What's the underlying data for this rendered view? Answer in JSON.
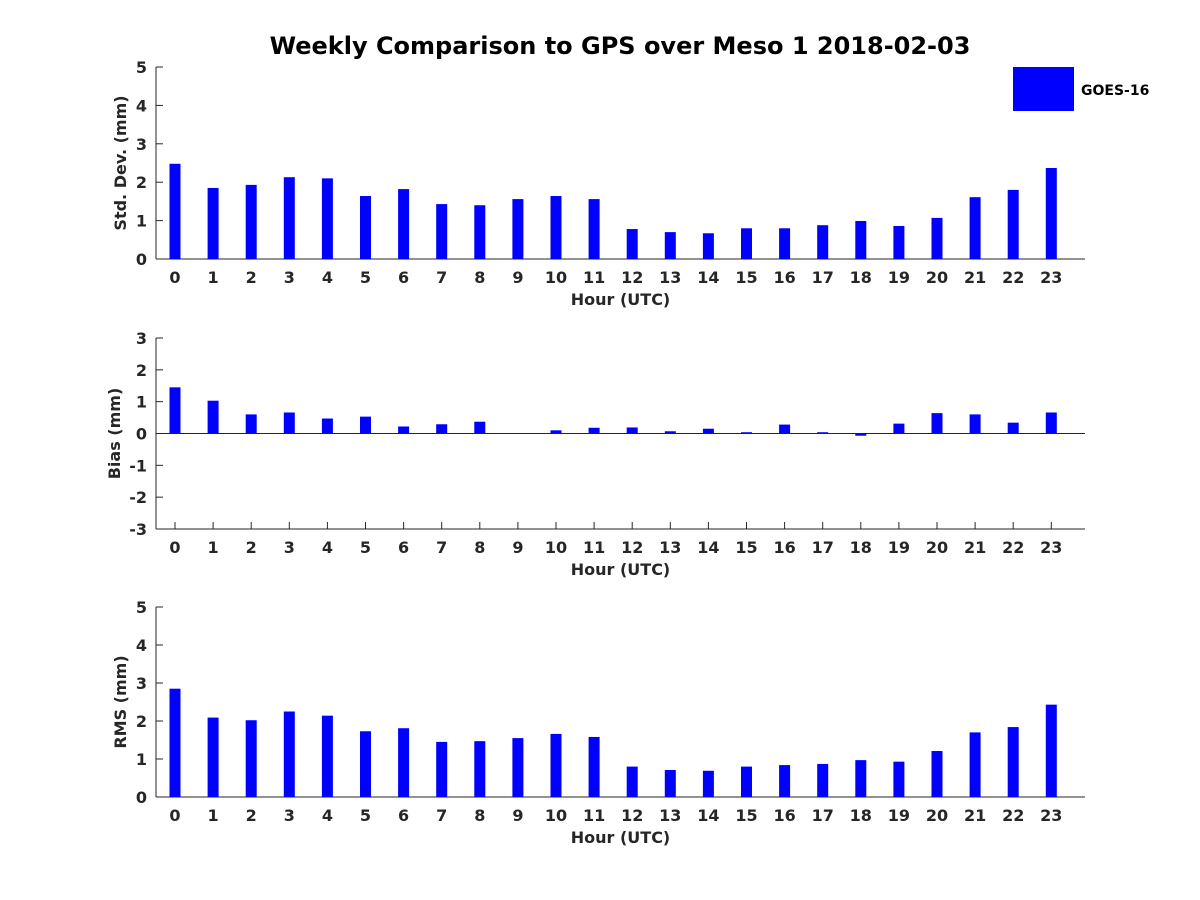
{
  "figure": {
    "title": "Weekly Comparison to GPS over Meso 1 2018-02-03"
  },
  "legend": {
    "label": "GOES-16",
    "color": "#0000ff",
    "placement": "top-right"
  },
  "chart_data": [
    {
      "type": "bar",
      "categories": [
        "0",
        "1",
        "2",
        "3",
        "4",
        "5",
        "6",
        "7",
        "8",
        "9",
        "10",
        "11",
        "12",
        "13",
        "14",
        "15",
        "16",
        "17",
        "18",
        "19",
        "20",
        "21",
        "22",
        "23"
      ],
      "series": [
        {
          "name": "GOES-16",
          "values": [
            2.48,
            1.85,
            1.93,
            2.13,
            2.1,
            1.64,
            1.82,
            1.43,
            1.4,
            1.56,
            1.64,
            1.56,
            0.78,
            0.7,
            0.67,
            0.8,
            0.8,
            0.88,
            0.99,
            0.86,
            1.07,
            1.61,
            1.8,
            2.37
          ]
        }
      ],
      "xlabel": "Hour (UTC)",
      "ylabel": "Std. Dev. (mm)",
      "ylim": [
        0,
        5
      ],
      "yticks": [
        "0",
        "1",
        "2",
        "3",
        "4",
        "5"
      ],
      "grid": false
    },
    {
      "type": "bar",
      "categories": [
        "0",
        "1",
        "2",
        "3",
        "4",
        "5",
        "6",
        "7",
        "8",
        "9",
        "10",
        "11",
        "12",
        "13",
        "14",
        "15",
        "16",
        "17",
        "18",
        "19",
        "20",
        "21",
        "22",
        "23"
      ],
      "series": [
        {
          "name": "GOES-16",
          "values": [
            1.45,
            1.03,
            0.6,
            0.66,
            0.47,
            0.53,
            0.22,
            0.29,
            0.37,
            0.0,
            0.1,
            0.18,
            0.19,
            0.07,
            0.15,
            0.04,
            0.28,
            0.04,
            -0.07,
            0.31,
            0.64,
            0.6,
            0.34,
            0.66
          ]
        }
      ],
      "xlabel": "Hour (UTC)",
      "ylabel": "Bias (mm)",
      "ylim": [
        -3,
        3
      ],
      "yticks": [
        "-3",
        "-2",
        "-1",
        "0",
        "1",
        "2",
        "3"
      ],
      "grid": false
    },
    {
      "type": "bar",
      "categories": [
        "0",
        "1",
        "2",
        "3",
        "4",
        "5",
        "6",
        "7",
        "8",
        "9",
        "10",
        "11",
        "12",
        "13",
        "14",
        "15",
        "16",
        "17",
        "18",
        "19",
        "20",
        "21",
        "22",
        "23"
      ],
      "series": [
        {
          "name": "GOES-16",
          "values": [
            2.85,
            2.09,
            2.02,
            2.25,
            2.14,
            1.73,
            1.81,
            1.45,
            1.47,
            1.55,
            1.66,
            1.58,
            0.8,
            0.71,
            0.69,
            0.8,
            0.84,
            0.87,
            0.97,
            0.93,
            1.21,
            1.7,
            1.84,
            2.43
          ]
        }
      ],
      "xlabel": "Hour (UTC)",
      "ylabel": "RMS (mm)",
      "ylim": [
        0,
        5
      ],
      "yticks": [
        "0",
        "1",
        "2",
        "3",
        "4",
        "5"
      ],
      "grid": false
    }
  ]
}
